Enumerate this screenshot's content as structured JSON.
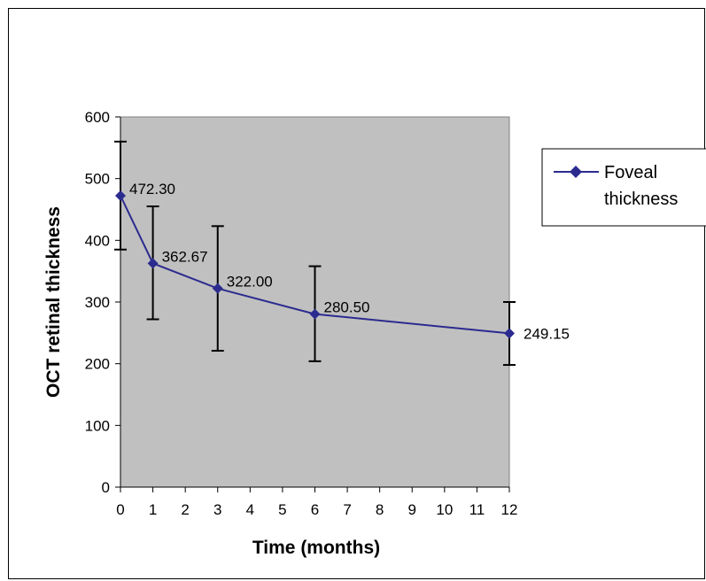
{
  "chart_data": {
    "type": "line",
    "title": "",
    "xlabel": "Time (months)",
    "ylabel": "OCT retinal thickness",
    "xlim": [
      0,
      12
    ],
    "ylim": [
      0,
      600
    ],
    "x_ticks": [
      0,
      1,
      2,
      3,
      4,
      5,
      6,
      7,
      8,
      9,
      10,
      11,
      12
    ],
    "y_ticks": [
      0,
      100,
      200,
      300,
      400,
      500,
      600
    ],
    "grid": false,
    "plot_background": "#c0c0c0",
    "legend": {
      "position": "right",
      "entries": [
        "Foveal",
        "thickness"
      ]
    },
    "series": [
      {
        "name": "Foveal thickness",
        "color": "#2b2b8f",
        "marker": "diamond",
        "points": [
          {
            "x": 0,
            "y": 472.3,
            "label": "472.30",
            "err_low": 385,
            "err_high": 560
          },
          {
            "x": 1,
            "y": 362.67,
            "label": "362.67",
            "err_low": 272,
            "err_high": 455
          },
          {
            "x": 3,
            "y": 322.0,
            "label": "322.00",
            "err_low": 221,
            "err_high": 423
          },
          {
            "x": 6,
            "y": 280.5,
            "label": "280.50",
            "err_low": 204,
            "err_high": 358
          },
          {
            "x": 12,
            "y": 249.15,
            "label": "249.15",
            "err_low": 198,
            "err_high": 300
          }
        ]
      }
    ]
  }
}
